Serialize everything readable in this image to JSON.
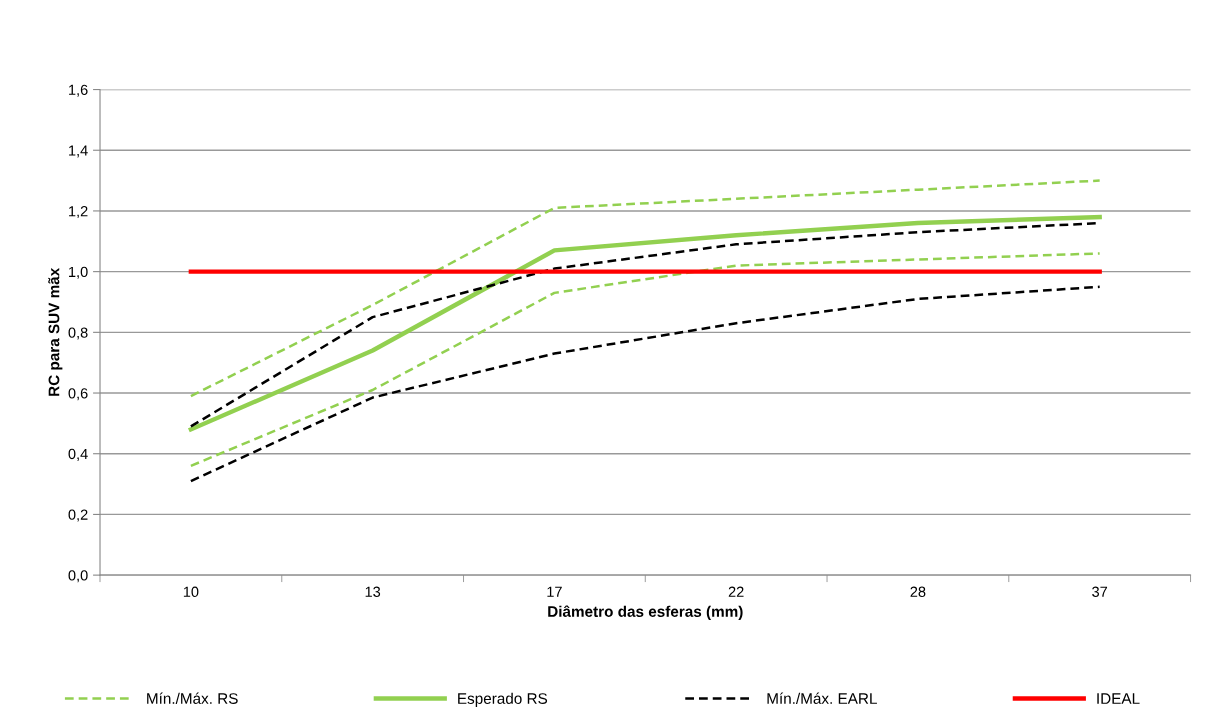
{
  "chart_data": {
    "type": "line",
    "xlabel": "Diâmetro das esferas (mm)",
    "ylabel": "RC para SUV mãx",
    "categories": [
      "10",
      "13",
      "17",
      "22",
      "28",
      "37"
    ],
    "series": [
      {
        "name": "Mín./Máx. RS",
        "color": "#92d050",
        "line_style": "dashed",
        "values": [
          0.59,
          0.89,
          1.21,
          1.24,
          1.27,
          1.3
        ]
      },
      {
        "color": "#92d050",
        "line_style": "dashed",
        "values": [
          0.36,
          0.61,
          0.93,
          1.02,
          1.04,
          1.06
        ]
      },
      {
        "name": "Esperado RS",
        "color": "#92d050",
        "line_style": "solid",
        "values": [
          0.48,
          0.74,
          1.07,
          1.12,
          1.16,
          1.18
        ]
      },
      {
        "name": "Mín./Máx. EARL",
        "color": "#000000",
        "line_style": "dashed",
        "values": [
          0.49,
          0.85,
          1.01,
          1.09,
          1.13,
          1.16
        ]
      },
      {
        "color": "#000000",
        "line_style": "dashed",
        "values": [
          0.31,
          0.585,
          0.73,
          0.83,
          0.91,
          0.95
        ]
      },
      {
        "name": "IDEAL",
        "color": "#ff0000",
        "line_style": "solid",
        "values": [
          1.0,
          1.0,
          1.0,
          1.0,
          1.0,
          1.0
        ]
      }
    ],
    "ylim": [
      0,
      1.6
    ],
    "yticks": [
      {
        "value": 0,
        "label": "0,0"
      },
      {
        "value": 0.2,
        "label": "0,2"
      },
      {
        "value": 0.4,
        "label": "0,4"
      },
      {
        "value": 0.6,
        "label": "0,6"
      },
      {
        "value": 0.8,
        "label": "0,8"
      },
      {
        "value": 1.0,
        "label": "1,0"
      },
      {
        "value": 1.2,
        "label": "1,2"
      },
      {
        "value": 1.4,
        "label": "1,4"
      },
      {
        "value": 1.6,
        "label": "1,6"
      }
    ],
    "grid": "y",
    "legend": "bottom",
    "marker": "none"
  }
}
